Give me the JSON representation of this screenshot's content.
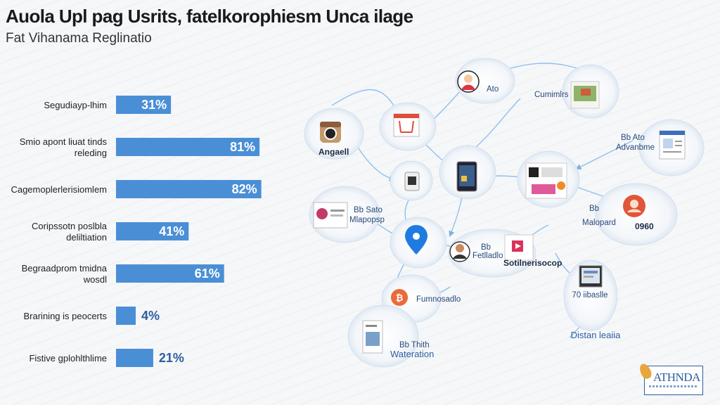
{
  "title": "Auola Upl pag Usrits, fatelkorophiesm Unca ilage",
  "subtitle": "Fat Vihanama Reglinatio",
  "chart_data": {
    "type": "bar",
    "orientation": "horizontal",
    "categories": [
      [
        "Segudiayp-lhim"
      ],
      [
        "Smio apont liuat tinds",
        "releding"
      ],
      [
        "Cagemoplerlerisiomlem"
      ],
      [
        "Coripssotn poslbla",
        "deliltiation"
      ],
      [
        "Begraadprom tmidna",
        "wosdl"
      ],
      [
        "Brarining is peocerts"
      ],
      [
        "Fistive gplohlthlime"
      ]
    ],
    "values": [
      31,
      81,
      82,
      41,
      61,
      4,
      21
    ],
    "value_labels": [
      "31%",
      "81%",
      "82%",
      "41%",
      "61%",
      "4%",
      "21%"
    ],
    "bar_color": "#4a8fd6"
  },
  "network": {
    "nodes": [
      {
        "id": "n1",
        "icon": "person-icon",
        "label": "Ato"
      },
      {
        "id": "n2",
        "icon": "gallery-icon",
        "label": "Cumimlrs"
      },
      {
        "id": "n3",
        "icon": "camera-icon",
        "label": "Angaell"
      },
      {
        "id": "n4",
        "icon": "calendar-icon",
        "label": ""
      },
      {
        "id": "n5",
        "icon": "document-icon",
        "label": "Advanbme",
        "sublabel": "Bb Ato"
      },
      {
        "id": "n6",
        "icon": "phone-icon",
        "label": ""
      },
      {
        "id": "n7",
        "icon": "tablet-icon",
        "label": ""
      },
      {
        "id": "n8",
        "icon": "media-icon",
        "label": ""
      },
      {
        "id": "n9",
        "icon": "card-icon",
        "label": "Mlapopsp",
        "sublabel": "Bb Sato"
      },
      {
        "id": "n10",
        "icon": "location-pin-icon",
        "label": ""
      },
      {
        "id": "n11",
        "icon": "portrait-icon",
        "label": "Fetlladlo",
        "sublabel": "Bb"
      },
      {
        "id": "n12",
        "icon": "play-icon",
        "label": "Sotilnerisocop"
      },
      {
        "id": "n13",
        "icon": "avatar-icon",
        "label": "Malopard",
        "sublabel": "Bb",
        "extra": "0960"
      },
      {
        "id": "n14",
        "icon": "bitcoin-icon",
        "label": "Fumnosadlo"
      },
      {
        "id": "n15",
        "icon": "monitor-icon",
        "label": "Distan leaiia",
        "sublabel": "70 iibaslle"
      },
      {
        "id": "n16",
        "icon": "book-icon",
        "label": "Wateration",
        "sublabel": "Bb Thith"
      }
    ]
  },
  "logo": {
    "text": "ATHNDA"
  }
}
